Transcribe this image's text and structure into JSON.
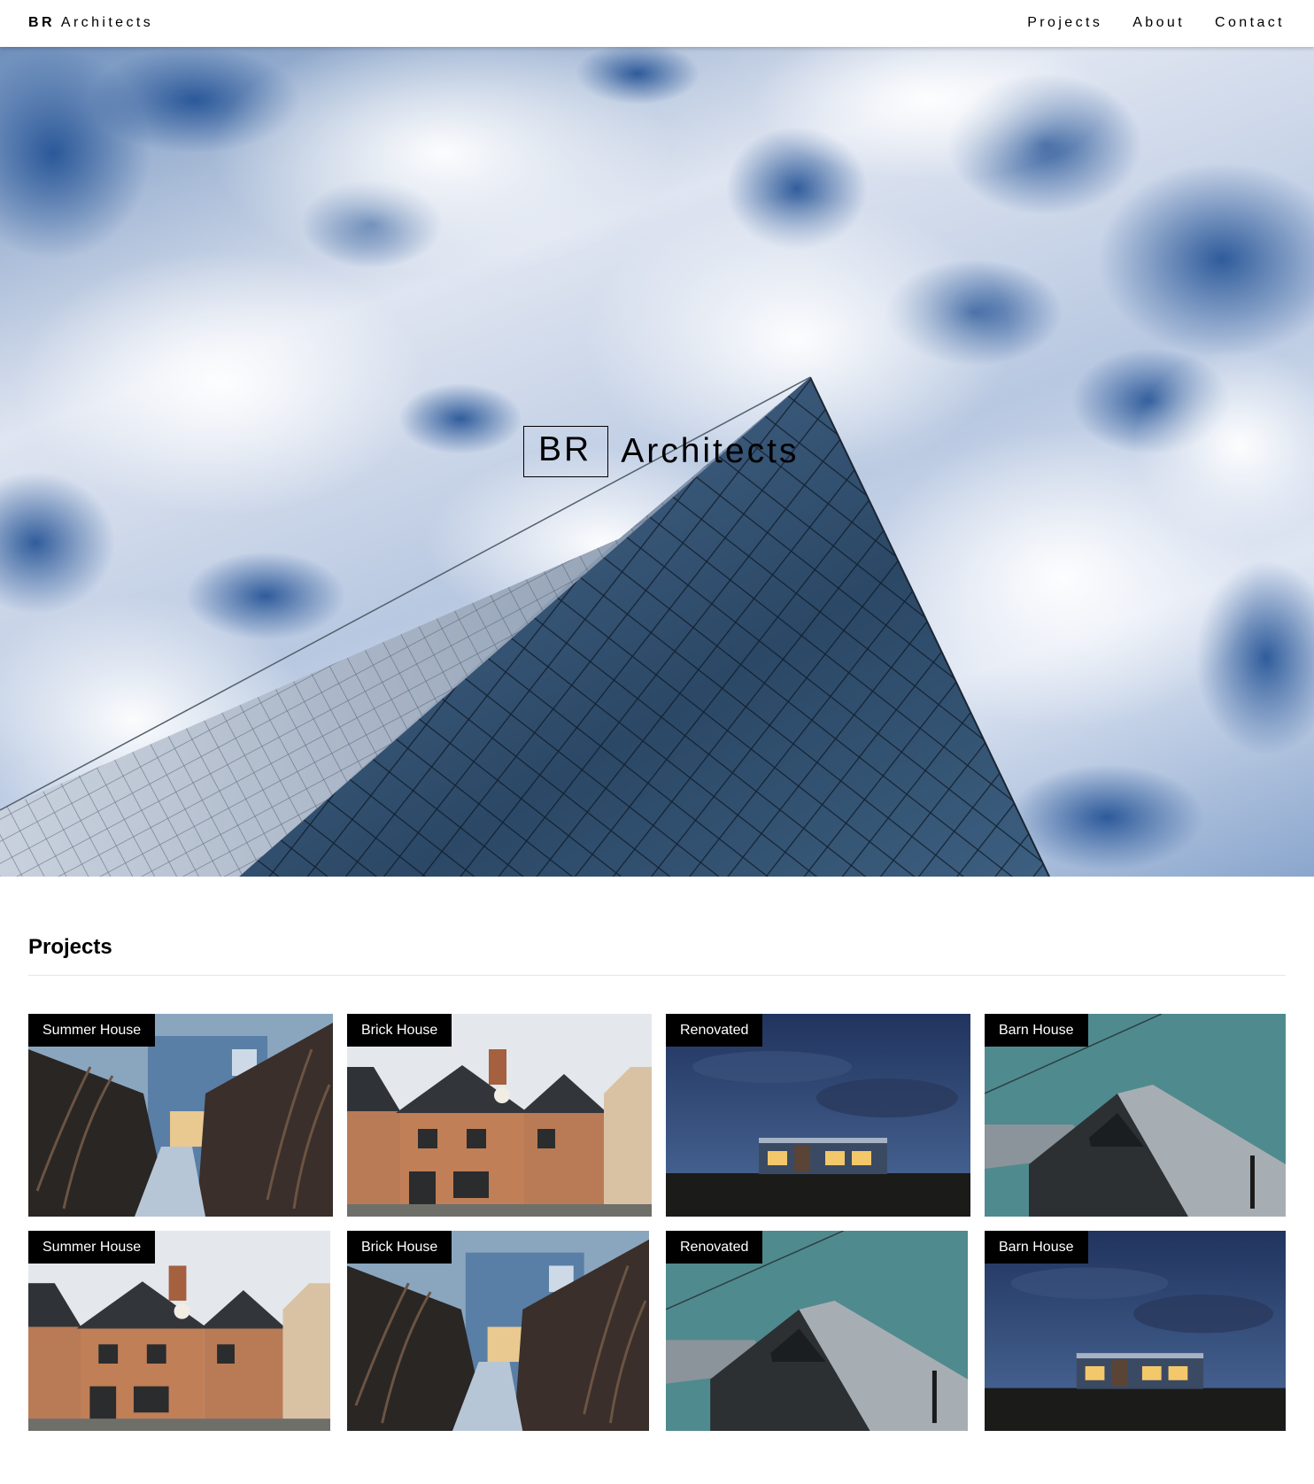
{
  "nav": {
    "brand_bold": "BR",
    "brand_rest": " Architects",
    "links": [
      "Projects",
      "About",
      "Contact"
    ]
  },
  "hero": {
    "box_text": "BR",
    "rest_text": "Architects"
  },
  "projects": {
    "heading": "Projects",
    "items": [
      {
        "title": "Summer House",
        "image": "summer-house-photo"
      },
      {
        "title": "Brick House",
        "image": "brick-house-photo"
      },
      {
        "title": "Renovated",
        "image": "renovated-house-night-photo"
      },
      {
        "title": "Barn House",
        "image": "barn-house-photo"
      },
      {
        "title": "Summer House",
        "image": "brick-house-photo"
      },
      {
        "title": "Brick House",
        "image": "summer-house-photo"
      },
      {
        "title": "Renovated",
        "image": "barn-house-photo"
      },
      {
        "title": "Barn House",
        "image": "renovated-house-night-photo"
      }
    ]
  },
  "colors": {
    "tag_background": "#000000",
    "tag_text": "#ffffff",
    "sky_blue": "#2f5f9e"
  }
}
